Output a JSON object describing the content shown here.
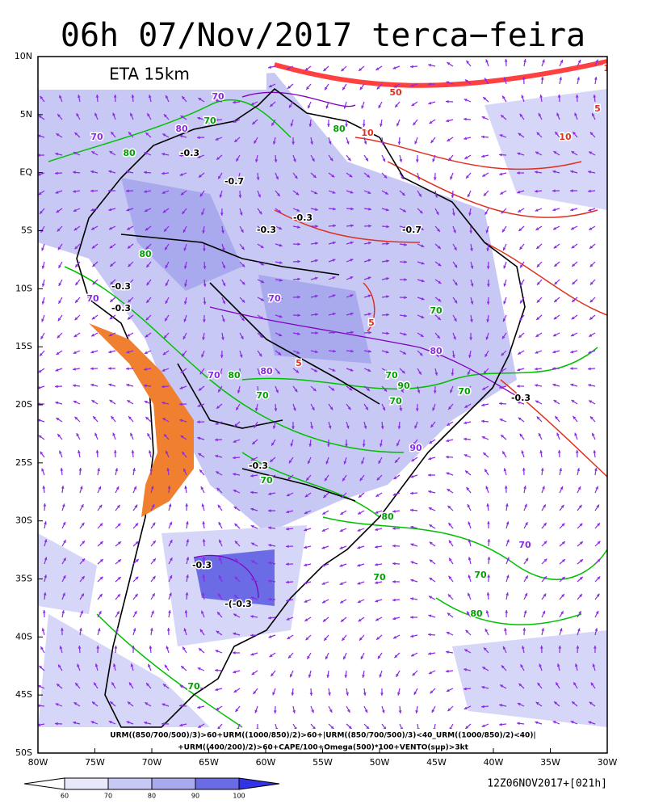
{
  "header": {
    "title": "06h 07/Nov/2017 terca−feira"
  },
  "panel_label": "ETA 15km",
  "axes": {
    "lat_labels": [
      "10N",
      "5N",
      "EQ",
      "5S",
      "10S",
      "15S",
      "20S",
      "25S",
      "30S",
      "35S",
      "40S",
      "45S",
      "50S"
    ],
    "lon_labels": [
      "80W",
      "75W",
      "70W",
      "65W",
      "60W",
      "55W",
      "50W",
      "45W",
      "40W",
      "35W",
      "30W"
    ]
  },
  "formula": [
    "URM((850/700/500)/3)>60+URM((1000/850)/2)>60+|URM((850/700/500)/3)<40_URM((1000/850)/2)<40)|",
    "+URM((400/200)/2)>60+CAPE/100+Omega(500)*100+VENTO(sup)>3kt"
  ],
  "colorbar": {
    "labels": [
      "60",
      "70",
      "80",
      "90",
      "100"
    ]
  },
  "timestamp": "12Z06NOV2017+[021h]",
  "contour_labels": [
    "70",
    "80",
    "70",
    "80",
    "-0.3",
    "-0.7",
    "70",
    "80",
    "-0.3",
    "-0.3",
    "-0.7",
    "80",
    "70",
    "-0.3",
    "-0.3",
    "70",
    "5",
    "5",
    "70",
    "80",
    "70",
    "80",
    "70",
    "70",
    "80",
    "-0.3",
    "90",
    "-0.3",
    "70",
    "70",
    "-0.3",
    "-(-0.3",
    "80",
    "70",
    "70",
    "80",
    "10",
    "5",
    "50",
    "10",
    "10",
    "70",
    "90",
    "70",
    "70"
  ]
}
